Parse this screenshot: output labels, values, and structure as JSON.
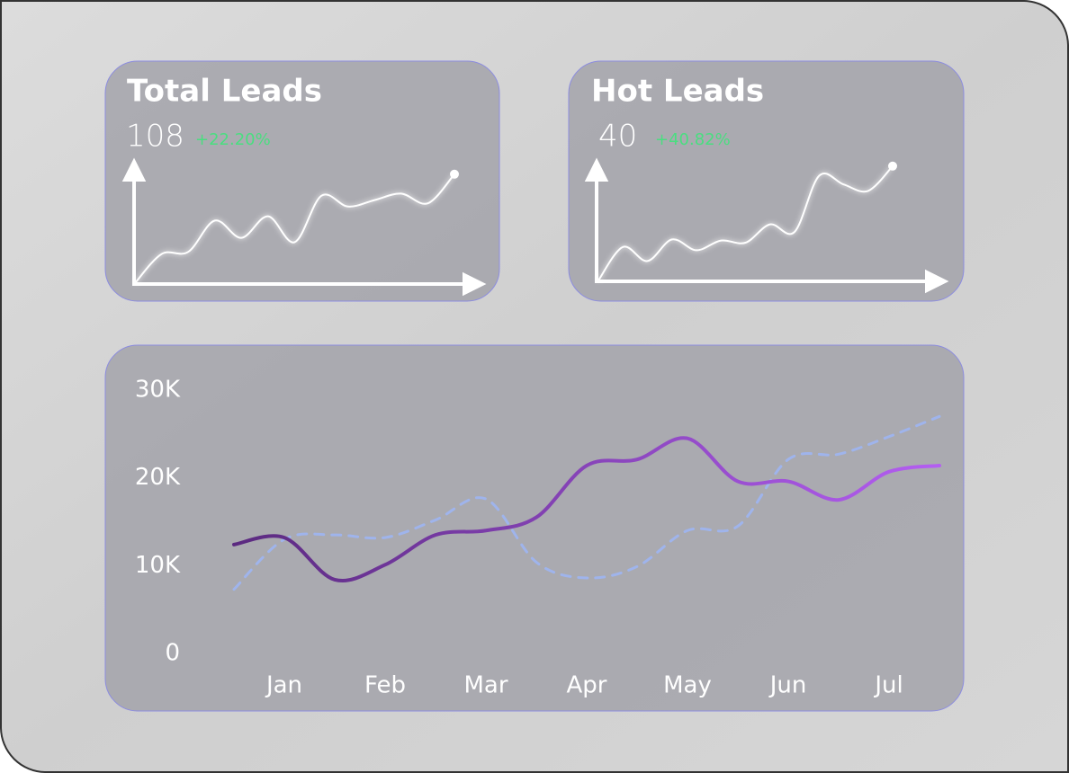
{
  "cards": [
    {
      "title": "Total Leads",
      "value": "108",
      "change": "+22.20%",
      "trend": {
        "type": "line",
        "values": [
          0,
          27,
          29,
          58,
          42,
          62,
          38,
          81,
          71,
          77,
          83,
          74,
          101
        ],
        "ylim": [
          0,
          110
        ],
        "color": "#ffffff"
      }
    },
    {
      "title": "Hot Leads",
      "value": "40",
      "change": "+40.82%",
      "trend": {
        "type": "line",
        "values": [
          0,
          31,
          18,
          38,
          28,
          37,
          35,
          52,
          45,
          97,
          89,
          83,
          106
        ],
        "ylim": [
          0,
          110
        ],
        "color": "#ffffff"
      }
    }
  ],
  "chart_data": {
    "type": "line",
    "categories": [
      null,
      "Jan",
      null,
      "Feb",
      null,
      "Mar",
      null,
      "Apr",
      null,
      "May",
      null,
      "Jun",
      null,
      "Jul",
      null
    ],
    "series": [
      {
        "color": "#5b2a80",
        "color_end": "#b45ef2",
        "dashed": false,
        "values": [
          12400,
          13200,
          8400,
          10100,
          13500,
          14000,
          15500,
          21400,
          22100,
          24500,
          19600,
          19600,
          17500,
          20700,
          21400
        ]
      },
      {
        "color": "#9fb4ec",
        "dashed": true,
        "values": [
          7300,
          13000,
          13500,
          13200,
          15200,
          17600,
          10400,
          8600,
          9900,
          14000,
          14500,
          22100,
          22700,
          24700,
          27000
        ]
      }
    ],
    "ylim": [
      0,
      30000
    ],
    "yticks": [
      {
        "value": 0,
        "label": "0"
      },
      {
        "value": 10000,
        "label": "10K"
      },
      {
        "value": 20000,
        "label": "20K"
      },
      {
        "value": 30000,
        "label": "30K"
      }
    ],
    "grid": false
  }
}
